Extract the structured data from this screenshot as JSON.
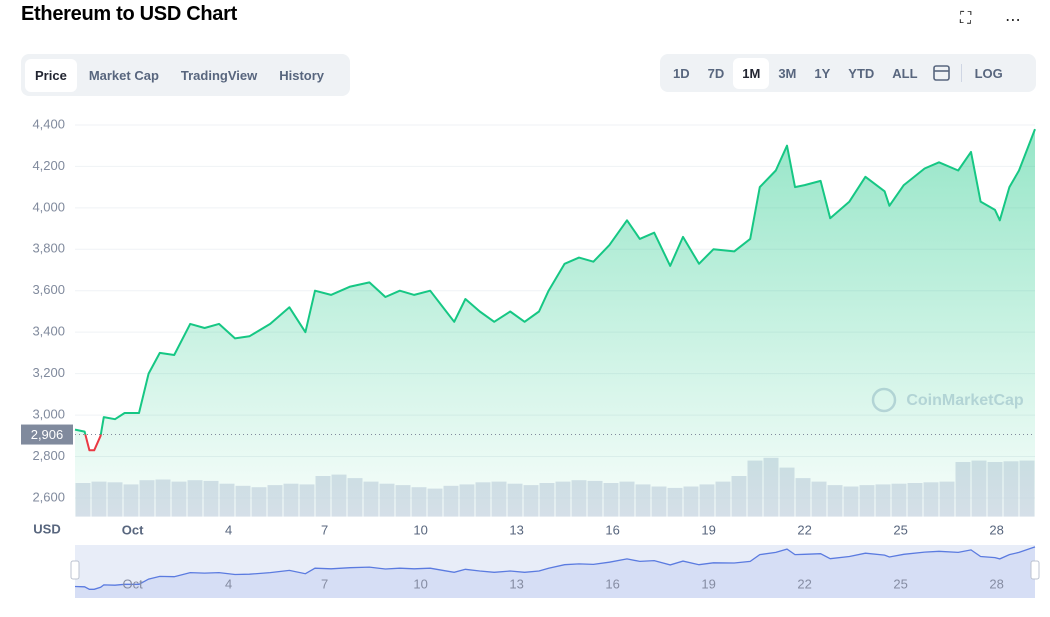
{
  "header": {
    "title": "Ethereum to USD Chart"
  },
  "tabs": [
    "Price",
    "Market Cap",
    "TradingView",
    "History"
  ],
  "ranges": [
    "1D",
    "7D",
    "1M",
    "3M",
    "1Y",
    "YTD",
    "ALL"
  ],
  "log_button": "LOG",
  "chart_data": {
    "type": "line",
    "y_label": "USD",
    "watermark": "CoinMarketCap",
    "x": [
      -0.8,
      -0.5,
      -0.35,
      -0.2,
      0,
      0.1,
      0.45,
      0.75,
      1.2,
      1.5,
      1.85,
      2.3,
      2.8,
      3.25,
      3.7,
      4.2,
      4.65,
      5.3,
      5.9,
      6.4,
      6.7,
      7.2,
      7.8,
      8.4,
      8.9,
      9.35,
      9.8,
      10.3,
      10.75,
      11.05,
      11.4,
      11.85,
      12.3,
      12.8,
      13.25,
      13.7,
      14,
      14.5,
      14.95,
      15.4,
      15.9,
      16.45,
      16.85,
      17.3,
      17.8,
      18.2,
      18.7,
      19.15,
      19.8,
      20.3,
      20.6,
      21.1,
      21.45,
      21.7,
      22,
      22.5,
      22.8,
      23.4,
      23.9,
      24.5,
      24.65,
      25.1,
      25.75,
      26.2,
      26.8,
      27.2,
      27.5,
      27.95,
      28.1,
      28.4,
      28.7,
      29.2
    ],
    "series": [
      {
        "name": "Price",
        "color": "#16c784",
        "down_color": "#ea3943",
        "values": [
          2930,
          2920,
          2830,
          2830,
          2900,
          2990,
          2980,
          3010,
          3010,
          3200,
          3300,
          3290,
          3440,
          3420,
          3440,
          3370,
          3380,
          3440,
          3520,
          3400,
          3600,
          3580,
          3620,
          3640,
          3570,
          3600,
          3580,
          3600,
          3510,
          3450,
          3560,
          3500,
          3450,
          3500,
          3450,
          3500,
          3600,
          3730,
          3760,
          3740,
          3820,
          3940,
          3850,
          3880,
          3720,
          3860,
          3730,
          3800,
          3790,
          3850,
          4100,
          4180,
          4300,
          4100,
          4110,
          4130,
          3950,
          4030,
          4150,
          4080,
          4010,
          4110,
          4190,
          4220,
          4180,
          4270,
          4030,
          3990,
          3940,
          4100,
          4180,
          4380
        ]
      }
    ],
    "volume": {
      "color": "#cfd6e4",
      "values": [
        48,
        50,
        49,
        46,
        52,
        53,
        50,
        52,
        51,
        47,
        44,
        42,
        45,
        47,
        46,
        58,
        60,
        55,
        50,
        47,
        45,
        42,
        40,
        44,
        46,
        49,
        50,
        47,
        45,
        48,
        50,
        52,
        51,
        48,
        50,
        46,
        43,
        41,
        43,
        46,
        50,
        58,
        80,
        84,
        70,
        55,
        50,
        45,
        43,
        45,
        46,
        47,
        48,
        49,
        50,
        78,
        80,
        78,
        79,
        80
      ],
      "vlim": [
        0,
        100
      ]
    },
    "current_price": {
      "value": 2906,
      "label": "2,906"
    },
    "xlim": [
      -0.8,
      29.2
    ],
    "xticks": [
      {
        "value": 1,
        "label": "Oct"
      },
      4,
      7,
      10,
      13,
      16,
      19,
      22,
      25,
      28
    ],
    "ylim": [
      2510,
      4450
    ],
    "yticks": [
      {
        "value": 2600,
        "label": "2,600"
      },
      {
        "value": 2800,
        "label": "2,800"
      },
      {
        "value": 3000,
        "label": "3,000"
      },
      {
        "value": 3200,
        "label": "3,200"
      },
      {
        "value": 3400,
        "label": "3,400"
      },
      {
        "value": 3600,
        "label": "3,600"
      },
      {
        "value": 3800,
        "label": "3,800"
      },
      {
        "value": 4000,
        "label": "4,000"
      },
      {
        "value": 4200,
        "label": "4,200"
      },
      {
        "value": 4400,
        "label": "4,400"
      }
    ],
    "grid": true
  }
}
